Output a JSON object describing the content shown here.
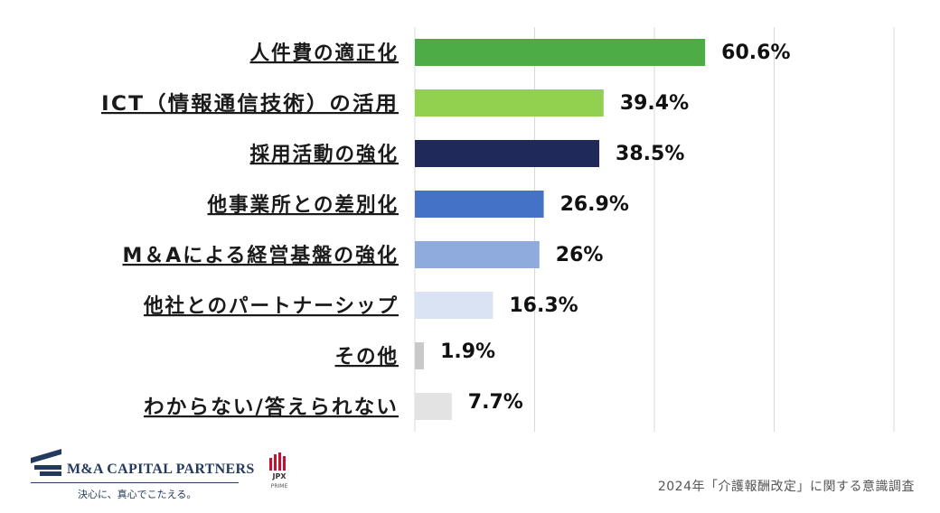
{
  "chart_data": {
    "type": "bar",
    "orientation": "horizontal",
    "categories": [
      "人件費の適正化",
      "ICT（情報通信技術）の活用",
      "採用活動の強化",
      "他事業所との差別化",
      "M＆Aによる経営基盤の強化",
      "他社とのパートナーシップ",
      "その他",
      "わからない/答えられない"
    ],
    "values": [
      60.6,
      39.4,
      38.5,
      26.9,
      26,
      16.3,
      1.9,
      7.7
    ],
    "value_labels": [
      "60.6%",
      "39.4%",
      "38.5%",
      "26.9%",
      "26%",
      "16.3%",
      "1.9%",
      "7.7%"
    ],
    "colors": [
      "#4eac47",
      "#92d050",
      "#1f2a5a",
      "#4472c4",
      "#8faadc",
      "#dae3f3",
      "#c9c9c9",
      "#e3e3e3"
    ],
    "xlim": [
      0,
      100
    ],
    "grid": true
  },
  "footer": {
    "company_name": "M&A CAPITAL PARTNERS",
    "tagline": "決心に、真心でこたえる。",
    "badge_text": "JPX",
    "badge_sub": "PRIME",
    "source": "2024年「介護報酬改定」に関する意識調査"
  }
}
